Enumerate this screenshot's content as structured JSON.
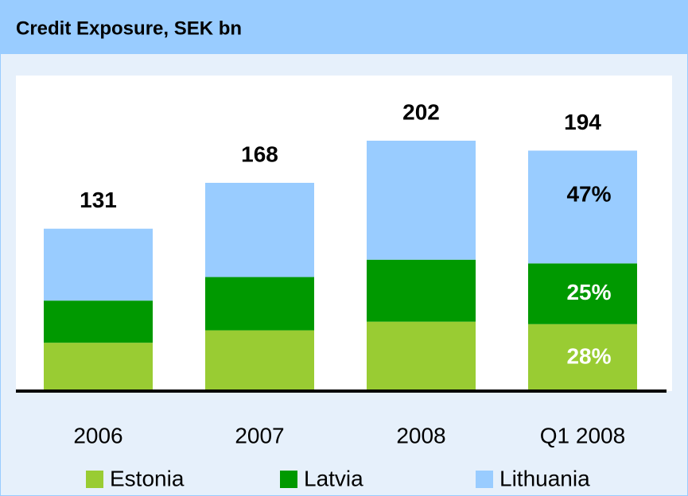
{
  "chart_data": {
    "type": "stacked_bar",
    "title": "Credit Exposure, SEK bn",
    "categories": [
      "2006",
      "2007",
      "2008",
      "Q1 2008"
    ],
    "series": [
      {
        "name": "Estonia",
        "color": "#99cc33",
        "values": [
          39,
          49,
          56,
          54
        ]
      },
      {
        "name": "Latvia",
        "color": "#009900",
        "values": [
          34,
          43,
          50,
          49
        ]
      },
      {
        "name": "Lithuania",
        "color": "#99ccff",
        "values": [
          58,
          76,
          96,
          91
        ]
      }
    ],
    "totals": [
      131,
      168,
      202,
      194
    ],
    "share_labels": [
      "28%",
      "25%",
      "47%"
    ],
    "share_label_colors": [
      "#ffffff",
      "#ffffff",
      "#000000"
    ]
  }
}
